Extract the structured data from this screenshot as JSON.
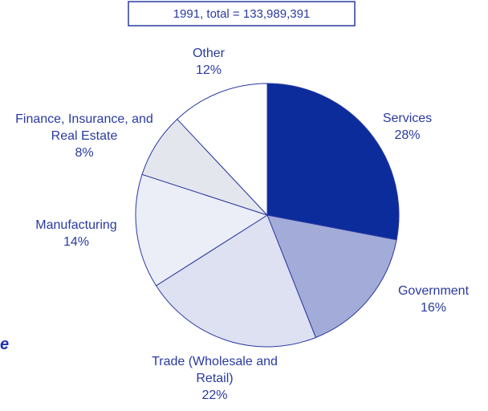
{
  "chart_data": {
    "type": "pie",
    "title": "1991, total = 133,989,391",
    "categories": [
      "Services",
      "Government",
      "Trade (Wholesale and Retail)",
      "Manufacturing",
      "Finance, Insurance, and Real Estate",
      "Other"
    ],
    "values": [
      28,
      16,
      22,
      14,
      8,
      12
    ],
    "value_labels": [
      "28%",
      "16%",
      "22%",
      "14%",
      "8%",
      "12%"
    ],
    "colors": [
      "#0c2c9c",
      "#a3acd8",
      "#dde1f1",
      "#eceef7",
      "#e4e6ee",
      "#ffffff"
    ],
    "start_angle": 0,
    "direction": "clockwise"
  },
  "margin_fragment": "e"
}
